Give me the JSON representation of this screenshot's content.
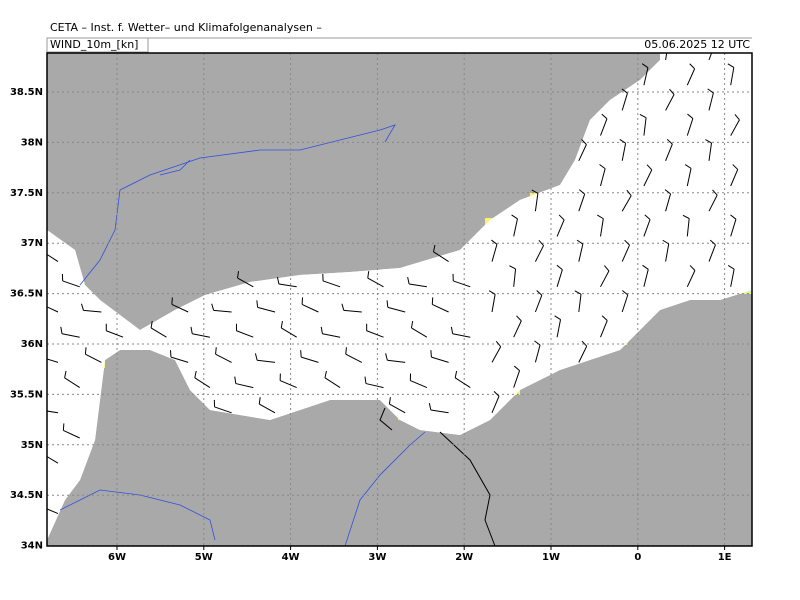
{
  "header": {
    "title": "CETA – Inst. f. Wetter– und Klimafolgenanalysen –",
    "field": "WIND_10m_[kn]",
    "time": "05.06.2025 12 UTC"
  },
  "map": {
    "lon_labels": [
      "6W",
      "5W",
      "4W",
      "3W",
      "2W",
      "1W",
      "0",
      "1E"
    ],
    "lat_labels": [
      "38.5N",
      "38N",
      "37.5N",
      "37N",
      "36.5N",
      "36N",
      "35.5N",
      "35N",
      "34.5N",
      "34N"
    ]
  }
}
